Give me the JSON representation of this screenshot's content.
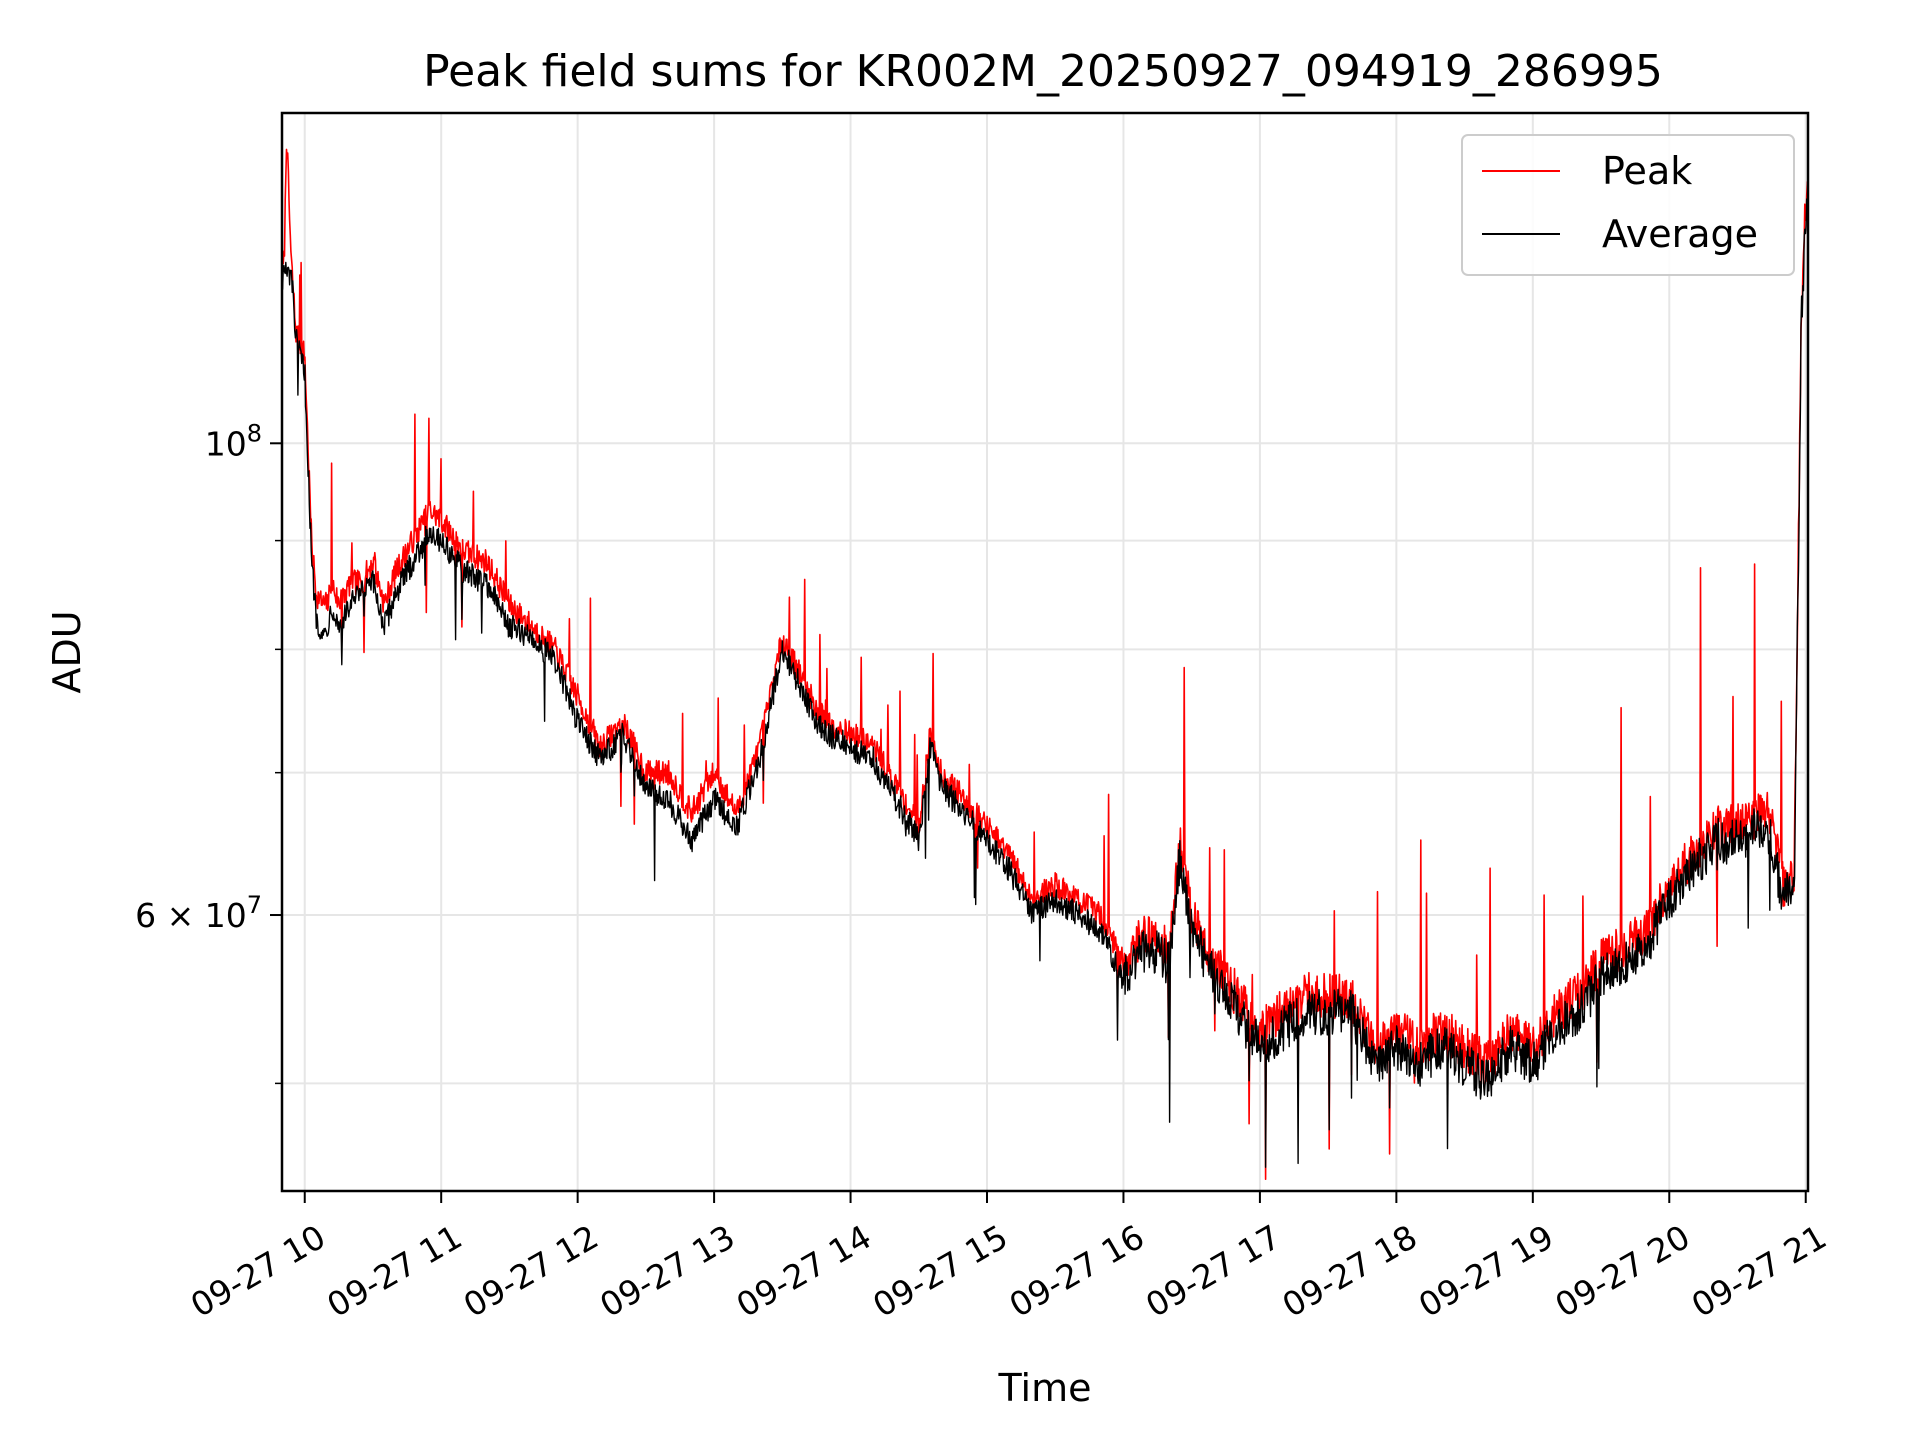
{
  "chart_data": {
    "type": "line",
    "title": "Peak field sums for KR002M_20250927_094919_286995",
    "xlabel": "Time",
    "ylabel": "ADU",
    "yscale": "log",
    "xlim": [
      "2025-09-27 09:50",
      "2025-09-27 21:01"
    ],
    "ylim": [
      44500000,
      143000000
    ],
    "grid": true,
    "legend_position": "top-right",
    "x_ticks": [
      "09-27 10",
      "09-27 11",
      "09-27 12",
      "09-27 13",
      "09-27 14",
      "09-27 15",
      "09-27 16",
      "09-27 17",
      "09-27 18",
      "09-27 19",
      "09-27 20",
      "09-27 21"
    ],
    "y_ticks": [
      {
        "value": 100000000,
        "label": "10",
        "exp": "8"
      },
      {
        "value": 60000000,
        "label": "6 × 10",
        "exp": "7"
      }
    ],
    "x_times": [
      "09:50",
      "09:51",
      "09:52",
      "09:54",
      "09:55",
      "09:56",
      "10:00",
      "10:03",
      "10:05",
      "10:08",
      "10:10",
      "10:12",
      "10:15",
      "10:18",
      "10:20",
      "10:25",
      "10:30",
      "10:35",
      "10:40",
      "10:45",
      "10:50",
      "10:55",
      "11:00",
      "11:10",
      "11:20",
      "11:30",
      "11:40",
      "11:50",
      "12:00",
      "12:10",
      "12:15",
      "12:20",
      "12:30",
      "12:40",
      "12:50",
      "13:00",
      "13:10",
      "13:20",
      "13:30",
      "13:40",
      "13:45",
      "13:50",
      "14:00",
      "14:10",
      "14:20",
      "14:30",
      "14:35",
      "14:40",
      "14:50",
      "15:00",
      "15:10",
      "15:20",
      "15:30",
      "15:40",
      "15:50",
      "16:00",
      "16:10",
      "16:20",
      "16:25",
      "16:30",
      "16:40",
      "16:50",
      "17:00",
      "17:10",
      "17:20",
      "17:30",
      "17:40",
      "17:50",
      "18:00",
      "18:10",
      "18:20",
      "18:30",
      "18:40",
      "18:50",
      "19:00",
      "19:10",
      "19:20",
      "19:30",
      "19:40",
      "19:50",
      "20:00",
      "20:10",
      "20:20",
      "20:30",
      "20:40",
      "20:45",
      "20:50",
      "20:55",
      "20:58",
      "21:00"
    ],
    "series": [
      {
        "name": "Peak",
        "color": "#ff0000",
        "values": [
          120,
          122,
          140,
          122,
          118,
          113,
          110,
          90,
          85,
          84,
          84,
          86,
          84,
          85,
          86,
          86,
          88,
          84,
          87,
          89,
          91,
          93,
          92,
          89,
          88,
          84,
          82,
          80,
          76,
          72,
          73,
          74,
          70,
          70,
          67,
          70,
          67,
          72,
          81,
          77,
          75,
          74,
          73,
          72,
          69,
          66,
          73,
          70,
          68,
          66,
          64,
          61,
          62,
          61,
          60,
          57,
          59,
          58,
          65,
          60,
          57,
          55,
          53,
          54,
          55,
          55,
          55,
          52,
          53,
          52,
          53,
          52,
          51,
          53,
          52,
          54,
          55,
          57,
          58,
          59,
          62,
          64,
          66,
          66,
          67,
          67,
          62,
          63,
          115,
          130
        ]
      },
      {
        "name": "Average",
        "color": "#000000",
        "values": [
          119,
          121,
          120,
          120,
          117,
          112,
          108,
          88,
          83,
          81,
          82,
          84,
          82,
          83,
          84,
          85,
          86,
          82,
          85,
          87,
          89,
          91,
          90,
          87,
          86,
          82,
          81,
          79,
          74,
          71,
          72,
          73,
          69,
          68,
          65,
          68,
          66,
          71,
          80,
          76,
          74,
          73,
          72,
          71,
          68,
          65,
          72,
          69,
          67,
          65,
          63,
          60,
          61,
          60,
          59,
          56,
          58,
          57,
          64,
          59,
          56,
          54,
          52,
          53,
          54,
          54,
          54,
          51,
          52,
          51,
          52,
          51,
          50,
          52,
          51,
          53,
          54,
          56,
          57,
          58,
          61,
          63,
          65,
          65,
          66,
          65,
          61,
          62,
          113,
          128
        ]
      }
    ]
  }
}
